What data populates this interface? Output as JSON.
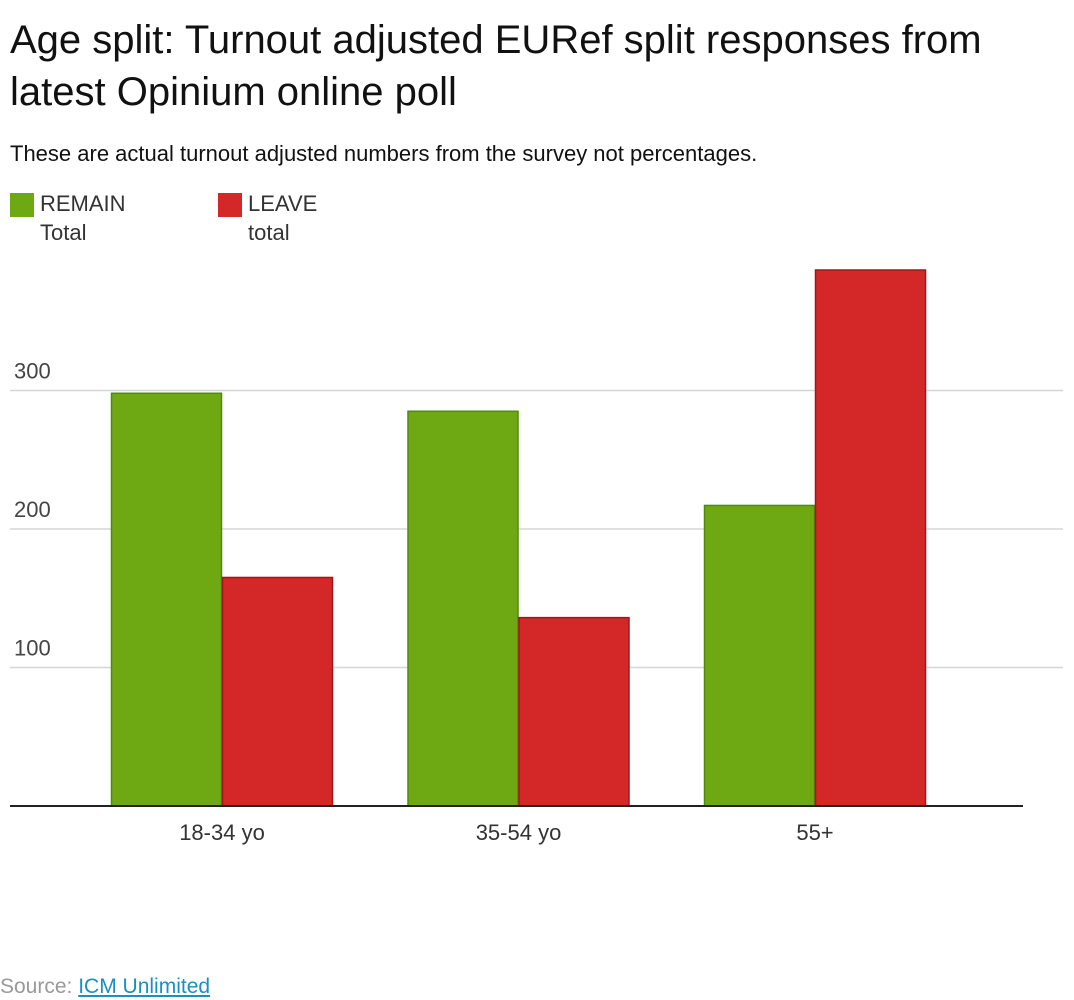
{
  "chart_data": {
    "type": "bar",
    "title": "Age split: Turnout adjusted EURef split responses from latest Opinium online poll",
    "subtitle": "These are actual turnout adjusted numbers from the survey not percentages.",
    "categories": [
      "18-34 yo",
      "35-54 yo",
      "55+"
    ],
    "series": [
      {
        "name": "REMAIN Total",
        "color": "#6ea914",
        "values": [
          298,
          285,
          217
        ]
      },
      {
        "name": "LEAVE total",
        "color": "#d42728",
        "values": [
          165,
          136,
          387
        ]
      }
    ],
    "yticks": [
      100,
      200,
      300
    ],
    "ylim": [
      0,
      400
    ],
    "grid": true,
    "legend": "top-left",
    "xlabel": "",
    "ylabel": ""
  },
  "legend": {
    "remain": {
      "line1": "REMAIN",
      "line2": "Total"
    },
    "leave": {
      "line1": "LEAVE",
      "line2": "total"
    }
  },
  "source": {
    "prefix": "Source:",
    "link_text": "ICM Unlimited"
  }
}
